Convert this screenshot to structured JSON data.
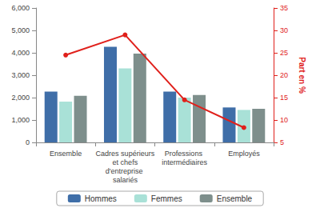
{
  "chart_data": {
    "type": "bar",
    "categories": [
      "Ensemble",
      "Cadres supérieurs et chefs d'entreprise salariés",
      "Professions intermédiaires",
      "Employés"
    ],
    "series": [
      {
        "name": "Hommes",
        "color": "#3f6ea8",
        "values": [
          2270,
          4270,
          2270,
          1560
        ]
      },
      {
        "name": "Femmes",
        "color": "#a9e1d7",
        "values": [
          1820,
          3300,
          2000,
          1450
        ]
      },
      {
        "name": "Ensemble",
        "color": "#7e8f8c",
        "values": [
          2080,
          3960,
          2120,
          1500
        ]
      },
      {
        "type": "line",
        "axis": "y2",
        "color": "#e0201b",
        "marker": "circle",
        "values": [
          24.5,
          29,
          14.5,
          8.3
        ]
      }
    ],
    "ylim": [
      0,
      6000
    ],
    "yticks": [
      0,
      1000,
      2000,
      3000,
      4000,
      5000,
      6000
    ],
    "y2lim": [
      5,
      35
    ],
    "y2ticks": [
      5,
      10,
      15,
      20,
      25,
      30,
      35
    ],
    "y2label": "Part en %",
    "grid": false,
    "legend": "bottom"
  }
}
